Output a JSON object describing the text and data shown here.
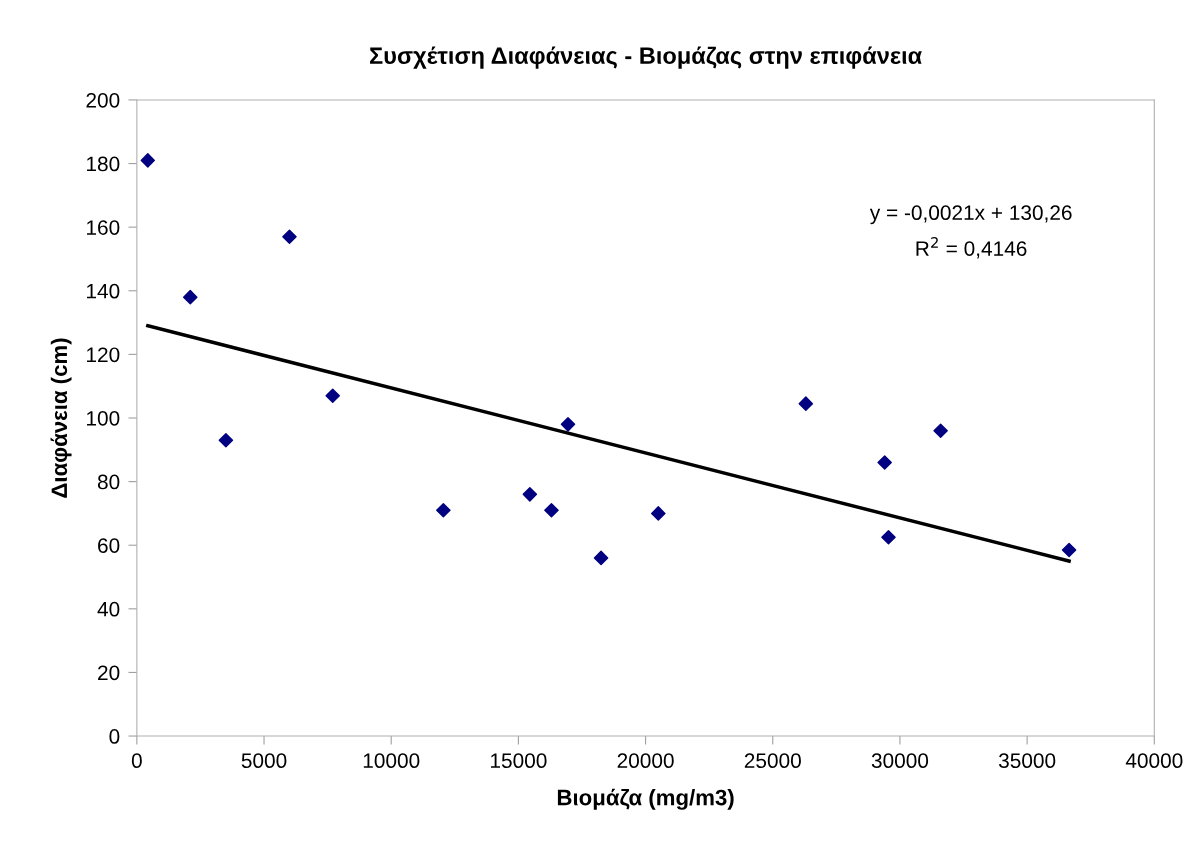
{
  "chart_data": {
    "type": "scatter",
    "title": "Συσχέτιση Διαφάνειας - Βιομάζας στην επιφάνεια",
    "xlabel": "Βιομάζα (mg/m3)",
    "ylabel": "Διαφάνεια (cm)",
    "series": [
      {
        "color": "#000080",
        "marker": "diamond",
        "x": [
          430,
          2100,
          3500,
          6000,
          7700,
          12050,
          15450,
          16300,
          16950,
          18250,
          20500,
          26300,
          29400,
          29550,
          31600,
          36650
        ],
        "values": [
          181,
          138,
          93,
          157,
          107,
          71,
          76,
          71,
          98,
          56,
          70,
          104.5,
          86,
          62.5,
          96,
          58.5
        ]
      },
      {
        "type": "line",
        "color": "#000000",
        "marker": "none",
        "line_style": "solid",
        "x": [
          430,
          36650
        ],
        "values": [
          129,
          55
        ]
      }
    ],
    "annotations": [
      "y = -0,0021x + 130,26",
      "R$^{2}$ = 0,4146"
    ],
    "xlim": [
      0,
      40000
    ],
    "xticks": [
      0,
      5000,
      10000,
      15000,
      20000,
      25000,
      30000,
      35000,
      40000
    ],
    "ylim": [
      0,
      200
    ],
    "yticks": [
      0,
      20,
      40,
      60,
      80,
      100,
      120,
      140,
      160,
      180,
      200
    ],
    "grid": false
  }
}
